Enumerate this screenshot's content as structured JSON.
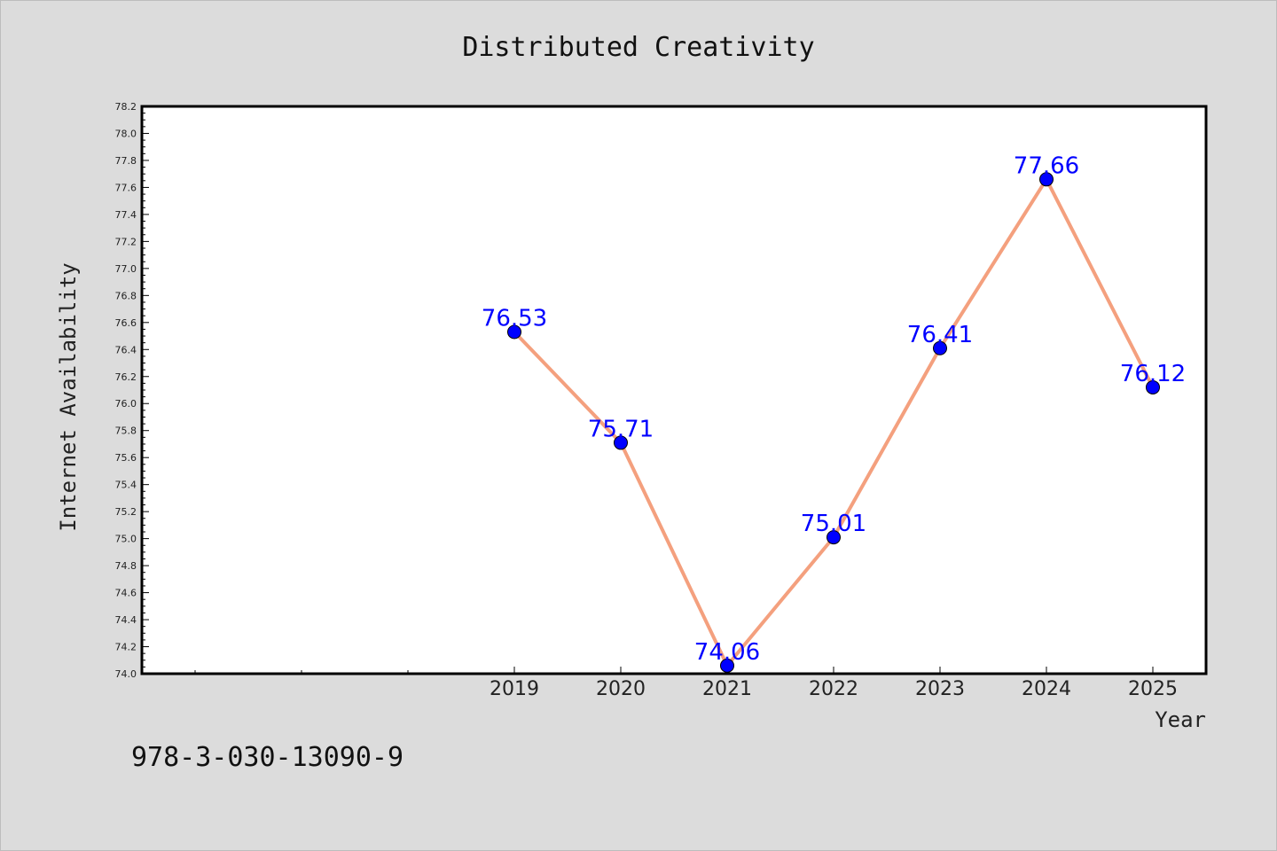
{
  "chart_data": {
    "type": "line",
    "title": "Distributed Creativity",
    "xlabel": "Year",
    "ylabel": "Internet Availability",
    "x": [
      "2019",
      "2020",
      "2021",
      "2022",
      "2023",
      "2024",
      "2025"
    ],
    "series": [
      {
        "values": [
          76.53,
          75.71,
          74.06,
          75.01,
          76.41,
          77.66,
          76.12
        ]
      }
    ],
    "data_labels": [
      "76.53",
      "75.71",
      "74.06",
      "75.01",
      "76.41",
      "77.66",
      "76.12"
    ],
    "ylim": [
      74.0,
      78.2
    ],
    "yticks": [
      "74.0",
      "74.2",
      "74.4",
      "74.6",
      "74.8",
      "75.0",
      "75.2",
      "75.4",
      "75.6",
      "75.8",
      "76.0",
      "76.2",
      "76.4",
      "76.6",
      "76.8",
      "77.0",
      "77.2",
      "77.4",
      "77.6",
      "77.8",
      "78.0",
      "78.2"
    ],
    "grid": false,
    "colors": {
      "line": "#f4a07e",
      "marker": "#0000ff",
      "label": "#0000ff",
      "background": "#dcdcdc",
      "plot_area": "#ffffff"
    }
  },
  "footer": {
    "identifier": "978-3-030-13090-9"
  }
}
